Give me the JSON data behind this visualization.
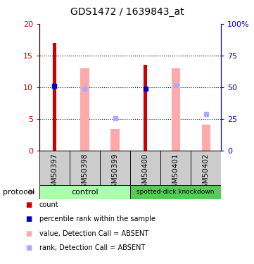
{
  "title": "GDS1472 / 1639843_at",
  "samples": [
    "GSM50397",
    "GSM50398",
    "GSM50399",
    "GSM50400",
    "GSM50401",
    "GSM50402"
  ],
  "count_values": [
    17.0,
    0,
    0,
    13.5,
    0,
    0
  ],
  "rank_values": [
    10.2,
    0,
    0,
    9.7,
    0,
    0
  ],
  "absent_value_bars": [
    0,
    13.0,
    3.4,
    0,
    13.0,
    4.1
  ],
  "absent_rank_dots": [
    0,
    9.7,
    5.1,
    0,
    10.3,
    5.8
  ],
  "ylim_left": [
    0,
    20
  ],
  "ylim_right": [
    0,
    100
  ],
  "yticks_left": [
    0,
    5,
    10,
    15,
    20
  ],
  "yticks_right": [
    0,
    25,
    50,
    75,
    100
  ],
  "yticklabels_left": [
    "0",
    "5",
    "10",
    "15",
    "20"
  ],
  "yticklabels_right": [
    "0",
    "25",
    "50",
    "75",
    "100%"
  ],
  "control_label": "control",
  "knockdown_label": "spotted-dick knockdown",
  "protocol_label": "protocol",
  "color_count": "#cc0000",
  "color_rank": "#0000cc",
  "color_absent_value": "#ffaaaa",
  "color_absent_rank": "#aaaaff",
  "color_control_bg": "#aaffaa",
  "color_knockdown_bg": "#55cc55",
  "color_sample_bg": "#cccccc",
  "legend_items": [
    "count",
    "percentile rank within the sample",
    "value, Detection Call = ABSENT",
    "rank, Detection Call = ABSENT"
  ]
}
